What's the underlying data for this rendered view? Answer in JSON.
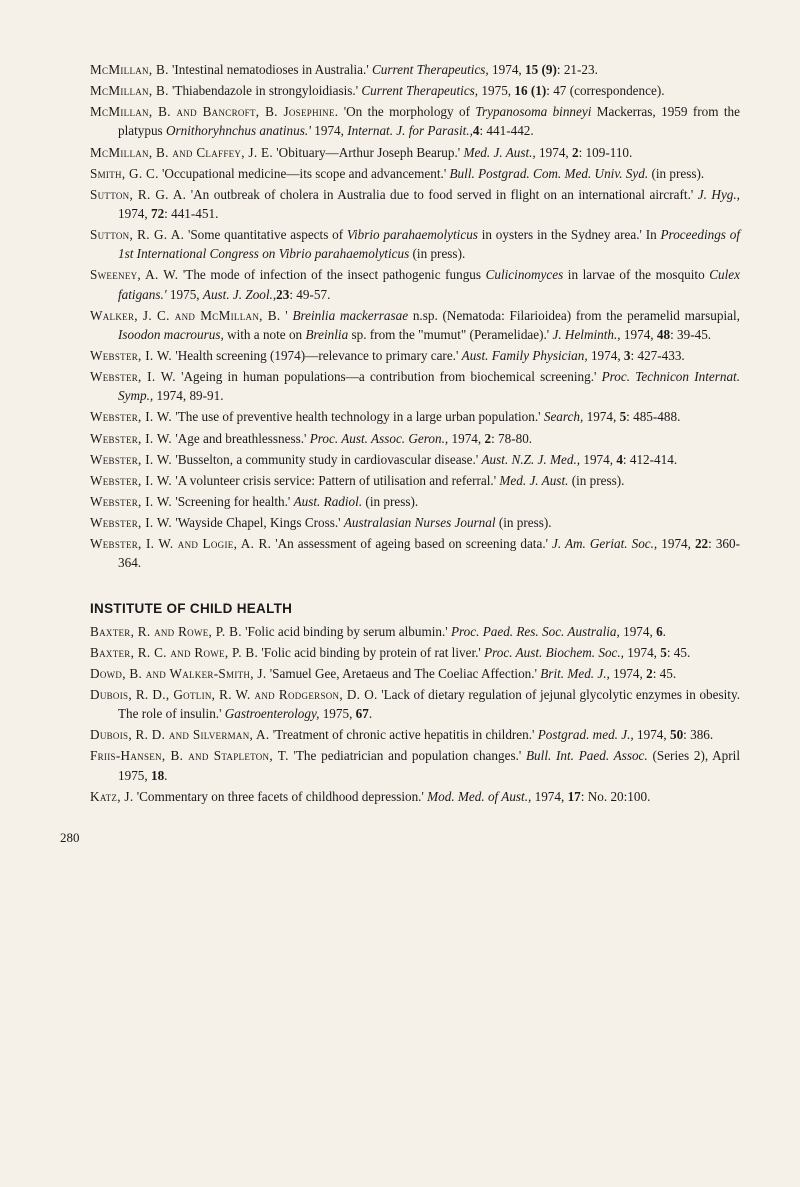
{
  "references_a": [
    {
      "authors": "McMillan, B.",
      "title": "'Intestinal nematodioses in Australia.'",
      "journal": "Current Therapeutics,",
      "rest": " 1974, ",
      "vol": "15 (9)",
      "pages": ": 21-23."
    },
    {
      "authors": "McMillan, B.",
      "title": "'Thiabendazole in strongyloidiasis.'",
      "journal": "Current Therapeutics,",
      "rest": " 1975, ",
      "vol": "16 (1)",
      "pages": ": 47 (correspondence)."
    },
    {
      "authors": "McMillan, B. and Bancroft, B. Josephine.",
      "title": "'On the morphology of ",
      "journal": "Trypanosoma binneyi",
      "rest": " Mackerras, 1959 from the platypus ",
      "journal2": "Ornithoryhnchus anatinus.'",
      "journal3": " Internat. J. for Parasit.,",
      "rest2": " 1974, ",
      "vol": "4",
      "pages": ": 441-442."
    },
    {
      "authors": "McMillan, B. and Claffey, J. E.",
      "title": "'Obituary—Arthur Joseph Bearup.'",
      "journal": "Med. J. Aust.,",
      "rest": " 1974, ",
      "vol": "2",
      "pages": ": 109-110."
    },
    {
      "authors": "Smith, G. C.",
      "title": "'Occupational medicine—its scope and advancement.'",
      "journal": "Bull. Postgrad. Com. Med. Univ. Syd.",
      "rest": " (in press)."
    },
    {
      "authors": "Sutton, R. G. A.",
      "title": "'An outbreak of cholera in Australia due to food served in flight on an international aircraft.'",
      "journal": "J. Hyg.,",
      "rest": " 1974, ",
      "vol": "72",
      "pages": ": 441-451."
    },
    {
      "authors": "Sutton, R. G. A.",
      "title": "'Some quantitative aspects of ",
      "journal": "Vibrio parahaemolyticus",
      "rest": " in oysters in the Sydney area.' In ",
      "journal2": "Proceedings of 1st International Congress on Vibrio parahaemolyticus",
      "rest2": " (in press)."
    },
    {
      "authors": "Sweeney, A. W.",
      "title": "'The mode of infection of the insect pathogenic fungus ",
      "journal": "Culicinomyces",
      "rest": " in larvae of the mosquito ",
      "journal2": "Culex fatigans.'",
      "journal3": " Aust. J. Zool.,",
      "rest2": " 1975, ",
      "vol": "23",
      "pages": ": 49-57."
    },
    {
      "authors": "Walker, J. C. and McMillan, B.",
      "title": "'",
      "journal": "Breinlia mackerrasae",
      "rest": " n.sp. (Nematoda: Filarioidea) from the peramelid marsupial, ",
      "journal2": "Isoodon macrourus,",
      "rest2": " with a note on ",
      "journal3": "Breinlia",
      "rest3": " sp. from the \"mumut\" (Peramelidae).' ",
      "journal4": "J. Helminth.,",
      "rest4": " 1974, ",
      "vol": "48",
      "pages": ": 39-45."
    },
    {
      "authors": "Webster, I. W.",
      "title": "'Health screening (1974)—relevance to primary care.'",
      "journal": "Aust. Family Physician,",
      "rest": " 1974, ",
      "vol": "3",
      "pages": ": 427-433."
    },
    {
      "authors": "Webster, I. W.",
      "title": "'Ageing in human populations—a contribution from biochemical screening.'",
      "journal": "Proc. Technicon Internat. Symp.,",
      "rest": " 1974, 89-91."
    },
    {
      "authors": "Webster, I. W.",
      "title": "'The use of preventive health technology in a large urban population.'",
      "journal": "Search,",
      "rest": " 1974, ",
      "vol": "5",
      "pages": ": 485-488."
    },
    {
      "authors": "Webster, I. W.",
      "title": "'Age and breathlessness.'",
      "journal": "Proc. Aust. Assoc. Geron.,",
      "rest": " 1974, ",
      "vol": "2",
      "pages": ": 78-80."
    },
    {
      "authors": "Webster, I. W.",
      "title": "'Busselton, a community study in cardiovascular disease.'",
      "journal": "Aust. N.Z. J. Med.,",
      "rest": " 1974, ",
      "vol": "4",
      "pages": ": 412-414."
    },
    {
      "authors": "Webster, I. W.",
      "title": "'A volunteer crisis service: Pattern of utilisation and referral.'",
      "journal": "Med. J. Aust.",
      "rest": " (in press)."
    },
    {
      "authors": "Webster, I. W.",
      "title": "'Screening for health.'",
      "journal": "Aust. Radiol.",
      "rest": " (in press)."
    },
    {
      "authors": "Webster, I. W.",
      "title": "'Wayside Chapel, Kings Cross.'",
      "journal": "Australasian Nurses Journal",
      "rest": " (in press)."
    },
    {
      "authors": "Webster, I. W. and Logie, A. R.",
      "title": "'An assessment of ageing based on screening data.'",
      "journal": "J. Am. Geriat. Soc.,",
      "rest": " 1974, ",
      "vol": "22",
      "pages": ": 360-364."
    }
  ],
  "section_title": "INSTITUTE OF CHILD HEALTH",
  "references_b": [
    {
      "authors": "Baxter, R. and Rowe, P. B.",
      "title": "'Folic acid binding by serum albumin.'",
      "journal": "Proc. Paed. Res. Soc. Australia,",
      "rest": " 1974, ",
      "vol": "6",
      "pages": "."
    },
    {
      "authors": "Baxter, R. C. and Rowe, P. B.",
      "title": "'Folic acid binding by protein of rat liver.'",
      "journal": "Proc. Aust. Biochem. Soc.,",
      "rest": " 1974, ",
      "vol": "5",
      "pages": ": 45."
    },
    {
      "authors": "Dowd, B. and Walker-Smith, J.",
      "title": "'Samuel Gee, Aretaeus and The Coeliac Affection.'",
      "journal": "Brit. Med. J.,",
      "rest": " 1974, ",
      "vol": "2",
      "pages": ": 45."
    },
    {
      "authors": "Dubois, R. D., Gotlin, R. W. and Rodgerson, D. O.",
      "title": "'Lack of dietary regulation of jejunal glycolytic enzymes in obesity. The role of insulin.'",
      "journal": "Gastroenterology,",
      "rest": " 1975, ",
      "vol": "67",
      "pages": "."
    },
    {
      "authors": "Dubois, R. D. and Silverman, A.",
      "title": "'Treatment of chronic active hepatitis in children.'",
      "journal": "Postgrad. med. J.,",
      "rest": " 1974, ",
      "vol": "50",
      "pages": ": 386."
    },
    {
      "authors": "Friis-Hansen, B. and Stapleton, T.",
      "title": "'The pediatrician and population changes.'",
      "journal": "Bull. Int. Paed. Assoc.",
      "rest": " (Series 2), April 1975, ",
      "vol": "18",
      "pages": "."
    },
    {
      "authors": "Katz, J.",
      "title": "'Commentary on three facets of childhood depression.'",
      "journal": "Mod. Med. of Aust.,",
      "rest": " 1974, ",
      "vol": "17",
      "pages": ": No. 20:100."
    }
  ],
  "page_number": "280"
}
